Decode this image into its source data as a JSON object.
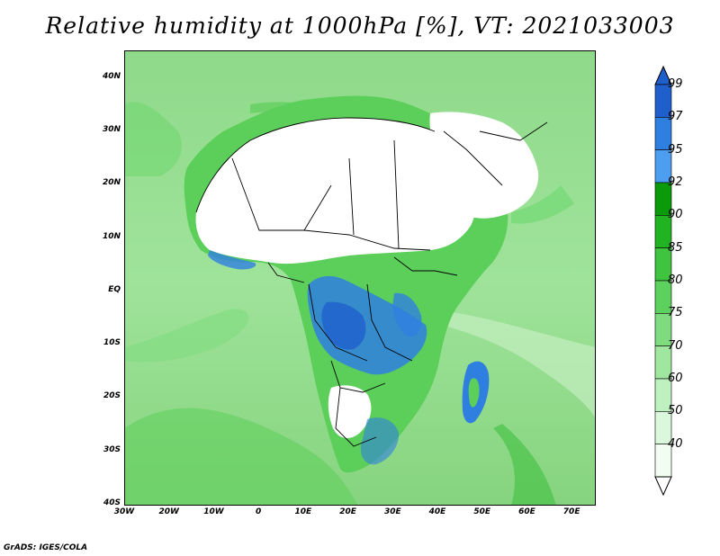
{
  "title": "Relative humidity at 1000hPa [%], VT: 2021033003",
  "credit": "GrADS: IGES/COLA",
  "map": {
    "lon_range": [
      -30,
      75
    ],
    "lat_range": [
      -40,
      45
    ],
    "lat_ticks": [
      {
        "value": 40,
        "label": "40N"
      },
      {
        "value": 30,
        "label": "30N"
      },
      {
        "value": 20,
        "label": "20N"
      },
      {
        "value": 10,
        "label": "10N"
      },
      {
        "value": 0,
        "label": "EQ"
      },
      {
        "value": -10,
        "label": "10S"
      },
      {
        "value": -20,
        "label": "20S"
      },
      {
        "value": -30,
        "label": "30S"
      },
      {
        "value": -40,
        "label": "40S"
      }
    ],
    "lon_ticks": [
      {
        "value": -30,
        "label": "30W"
      },
      {
        "value": -20,
        "label": "20W"
      },
      {
        "value": -10,
        "label": "10W"
      },
      {
        "value": 0,
        "label": "0"
      },
      {
        "value": 10,
        "label": "10E"
      },
      {
        "value": 20,
        "label": "20E"
      },
      {
        "value": 30,
        "label": "30E"
      },
      {
        "value": 40,
        "label": "40E"
      },
      {
        "value": 50,
        "label": "50E"
      },
      {
        "value": 60,
        "label": "60E"
      },
      {
        "value": 70,
        "label": "70E"
      }
    ],
    "colors": {
      "ocean_base": "#a8e0a0",
      "dry_land": "#ffffff",
      "moist_land": "#5ccf5a",
      "very_moist": "#2a76d8",
      "border": "#000000"
    }
  },
  "legend": {
    "levels": [
      {
        "label": "99",
        "color": "#1f5fcc"
      },
      {
        "label": "97",
        "color": "#2f7fe0"
      },
      {
        "label": "95",
        "color": "#4d9ef0"
      },
      {
        "label": "92",
        "color": "#0a9a0a"
      },
      {
        "label": "90",
        "color": "#22b322"
      },
      {
        "label": "85",
        "color": "#40c440"
      },
      {
        "label": "80",
        "color": "#5dd15d"
      },
      {
        "label": "75",
        "color": "#7edc7e"
      },
      {
        "label": "70",
        "color": "#9fe79f"
      },
      {
        "label": "60",
        "color": "#bff0bf"
      },
      {
        "label": "50",
        "color": "#dcf8dc"
      },
      {
        "label": "40",
        "color": "#f2fdf2"
      }
    ],
    "top_triangle_color": "#1f5fcc",
    "bottom_triangle_color": "#ffffff"
  }
}
